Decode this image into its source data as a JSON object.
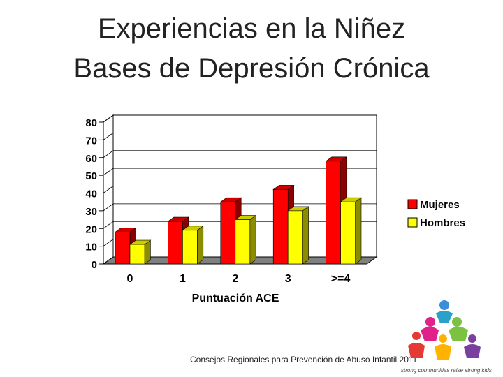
{
  "slide": {
    "title_line1": "Experiencias en la Niñez",
    "title_line2": "Bases de Depresión Crónica",
    "footer": "Consejos Regionales para Prevención de Abuso Infantil 2011",
    "logo_tagline": "strong communities raise strong kids"
  },
  "colors": {
    "mujeres": "#ff0000",
    "hombres": "#ffff00"
  },
  "chart_data": {
    "type": "bar",
    "title": "",
    "xlabel": "Puntuación ACE",
    "ylabel": "",
    "ylim": [
      0,
      80
    ],
    "yticks": [
      "0",
      "10",
      "20",
      "30",
      "40",
      "50",
      "60",
      "70",
      "80"
    ],
    "categories": [
      "0",
      "1",
      "2",
      "3",
      ">=4"
    ],
    "series": [
      {
        "name": "Mujeres",
        "values": [
          18,
          24,
          35,
          42,
          58
        ]
      },
      {
        "name": "Hombres",
        "values": [
          11,
          19,
          25,
          30,
          35
        ]
      }
    ],
    "legend": "right"
  }
}
